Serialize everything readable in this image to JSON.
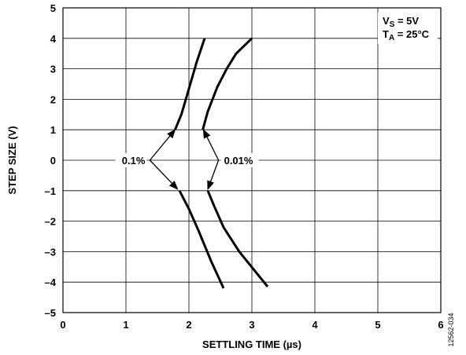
{
  "chart_data": {
    "type": "line",
    "xlabel": "SETTLING TIME (µs)",
    "ylabel": "STEP SIZE (V)",
    "xlim": [
      0,
      6
    ],
    "ylim": [
      -5,
      5
    ],
    "xticks": [
      "0",
      "1",
      "2",
      "3",
      "4",
      "5",
      "6"
    ],
    "yticks": [
      "5",
      "4",
      "3",
      "2",
      "1",
      "0",
      "–1",
      "–2",
      "–3",
      "–4",
      "–5"
    ],
    "grid": true,
    "conditions": {
      "vs_main": "V",
      "vs_sub": "S",
      "vs_rest": " = 5V",
      "ta_main": "T",
      "ta_sub": "A",
      "ta_rest": " = 25°C"
    },
    "series": [
      {
        "label": "0.1%",
        "points_positive": [
          [
            1.78,
            1.0
          ],
          [
            1.88,
            1.5
          ],
          [
            1.98,
            2.2
          ],
          [
            2.12,
            3.2
          ],
          [
            2.25,
            4.0
          ]
        ],
        "points_negative": [
          [
            1.85,
            -1.0
          ],
          [
            2.0,
            -1.6
          ],
          [
            2.15,
            -2.3
          ],
          [
            2.35,
            -3.3
          ],
          [
            2.55,
            -4.2
          ]
        ]
      },
      {
        "label": "0.01%",
        "points_positive": [
          [
            2.22,
            1.0
          ],
          [
            2.3,
            1.6
          ],
          [
            2.45,
            2.4
          ],
          [
            2.6,
            3.0
          ],
          [
            2.75,
            3.5
          ],
          [
            3.0,
            4.0
          ]
        ],
        "points_negative": [
          [
            2.3,
            -1.0
          ],
          [
            2.4,
            -1.5
          ],
          [
            2.55,
            -2.2
          ],
          [
            2.8,
            -3.0
          ],
          [
            3.25,
            -4.15
          ]
        ]
      }
    ],
    "annotations": [
      {
        "text": "0.1%",
        "x": 1.38,
        "y": 0,
        "arrow_to": [
          [
            1.78,
            1.0
          ],
          [
            1.82,
            -0.95
          ]
        ]
      },
      {
        "text": "0.01%",
        "x": 2.47,
        "y": 0,
        "arrow_to": [
          [
            2.23,
            1.0
          ],
          [
            2.3,
            -0.95
          ]
        ]
      }
    ],
    "figure_id": "12562-034"
  }
}
